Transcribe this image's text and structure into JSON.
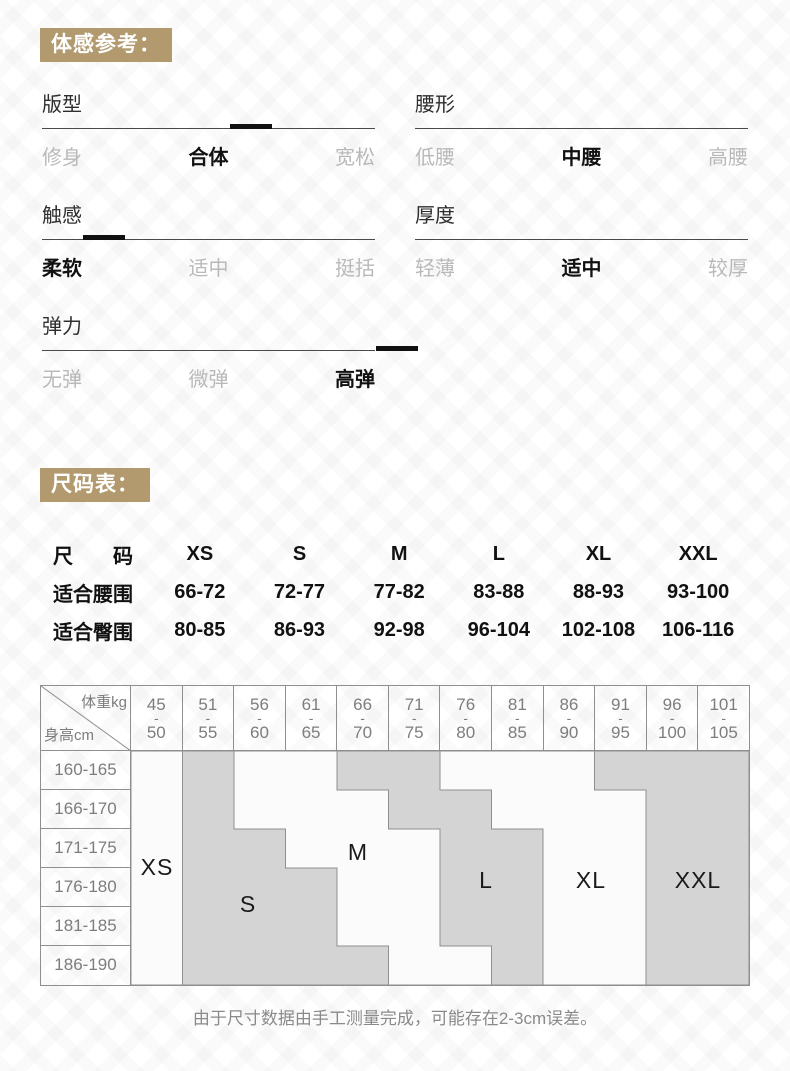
{
  "colors": {
    "badge_bg": "#b29a6e",
    "badge_text": "#ffffff",
    "selected_option": "#111111",
    "unselected_option": "#b9b9b9",
    "divider_line": "#4a4a4a",
    "grid_region_gray": "#d4d4d4",
    "grid_region_white": "#fbfbfb",
    "grid_border": "#8f8f8f",
    "grid_header_text": "#7d7d7d",
    "note_text": "#8a8a8a"
  },
  "feel_reference": {
    "badge": "体感参考：",
    "sections": [
      {
        "id": "fit",
        "label": "版型",
        "options": [
          "修身",
          "合体",
          "宽松"
        ],
        "selected": 1
      },
      {
        "id": "waist",
        "label": "腰形",
        "options": [
          "低腰",
          "中腰",
          "高腰"
        ],
        "selected": 1
      },
      {
        "id": "touch",
        "label": "触感",
        "options": [
          "柔软",
          "适中",
          "挺括"
        ],
        "selected": 0
      },
      {
        "id": "thickness",
        "label": "厚度",
        "options": [
          "轻薄",
          "适中",
          "较厚"
        ],
        "selected": 1
      },
      {
        "id": "stretch",
        "label": "弹力",
        "options": [
          "无弹",
          "微弹",
          "高弹"
        ],
        "selected": 2
      }
    ]
  },
  "size_table": {
    "badge": "尺码表：",
    "header_label": "尺码",
    "sizes": [
      "XS",
      "S",
      "M",
      "L",
      "XL",
      "XXL"
    ],
    "rows": [
      {
        "label": "适合腰围",
        "values": [
          "66-72",
          "72-77",
          "77-82",
          "83-88",
          "88-93",
          "93-100"
        ]
      },
      {
        "label": "适合臀围",
        "values": [
          "80-85",
          "86-93",
          "92-98",
          "96-104",
          "102-108",
          "106-116"
        ]
      }
    ]
  },
  "grid": {
    "corner_top": "体重kg",
    "corner_bottom": "身高cm",
    "dash": "-",
    "weight_cols": [
      {
        "lo": "45",
        "hi": "50"
      },
      {
        "lo": "51",
        "hi": "55"
      },
      {
        "lo": "56",
        "hi": "60"
      },
      {
        "lo": "61",
        "hi": "65"
      },
      {
        "lo": "66",
        "hi": "70"
      },
      {
        "lo": "71",
        "hi": "75"
      },
      {
        "lo": "76",
        "hi": "80"
      },
      {
        "lo": "81",
        "hi": "85"
      },
      {
        "lo": "86",
        "hi": "90"
      },
      {
        "lo": "91",
        "hi": "95"
      },
      {
        "lo": "96",
        "hi": "100"
      },
      {
        "lo": "101",
        "hi": "105"
      }
    ],
    "height_rows": [
      "160-165",
      "166-170",
      "171-175",
      "176-180",
      "181-185",
      "186-190"
    ],
    "regions": [
      {
        "label": "XS"
      },
      {
        "label": "S"
      },
      {
        "label": "M"
      },
      {
        "label": "L"
      },
      {
        "label": "XL"
      },
      {
        "label": "XXL"
      }
    ]
  },
  "note": "由于尺寸数据由手工测量完成，可能存在2-3cm误差。"
}
